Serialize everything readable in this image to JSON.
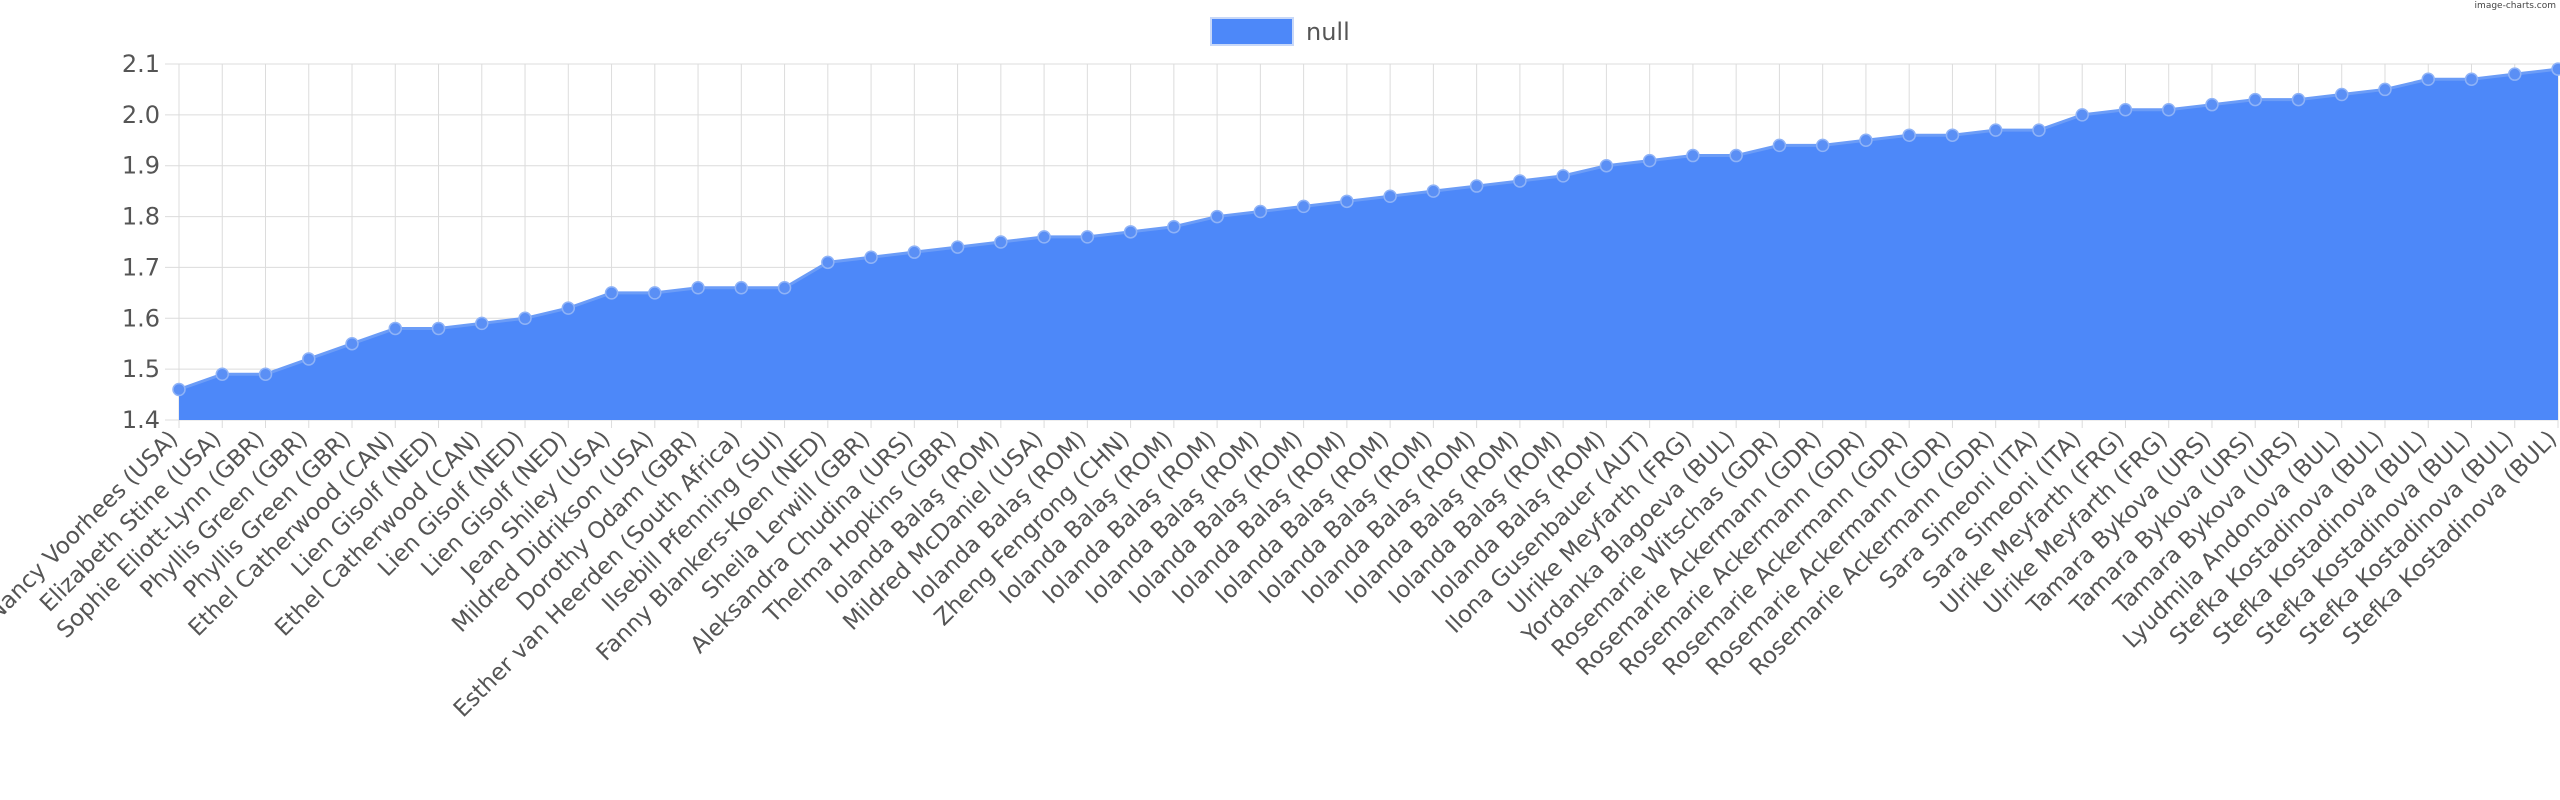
{
  "watermark": "image-charts.com",
  "chart_data": {
    "type": "area",
    "legend": {
      "position": "top",
      "entries": [
        "null"
      ]
    },
    "series": [
      {
        "name": "null",
        "color": "#4d88f9",
        "values": [
          1.46,
          1.49,
          1.49,
          1.52,
          1.55,
          1.58,
          1.58,
          1.59,
          1.6,
          1.62,
          1.65,
          1.65,
          1.66,
          1.66,
          1.66,
          1.71,
          1.72,
          1.73,
          1.74,
          1.75,
          1.76,
          1.76,
          1.77,
          1.78,
          1.8,
          1.81,
          1.82,
          1.83,
          1.84,
          1.85,
          1.86,
          1.87,
          1.88,
          1.9,
          1.91,
          1.92,
          1.92,
          1.94,
          1.94,
          1.95,
          1.96,
          1.96,
          1.97,
          1.97,
          2.0,
          2.01,
          2.01,
          2.02,
          2.03,
          2.03,
          2.04,
          2.05,
          2.07,
          2.07,
          2.08,
          2.09
        ]
      }
    ],
    "categories": [
      "Nancy Voorhees (USA)",
      "Elizabeth Stine (USA)",
      "Sophie Eliott-Lynn (GBR)",
      "Phyllis Green (GBR)",
      "Phyllis Green (GBR)",
      "Ethel Catherwood (CAN)",
      "Lien Gisolf (NED)",
      "Ethel Catherwood (CAN)",
      "Lien Gisolf (NED)",
      "Lien Gisolf (NED)",
      "Jean Shiley (USA)",
      "Mildred Didrikson (USA)",
      "Dorothy Odam (GBR)",
      "Esther van Heerden (South Africa)",
      "Ilsebill Pfenning (SUI)",
      "Fanny Blankers-Koen (NED)",
      "Sheila Lerwill (GBR)",
      "Aleksandra Chudina (URS)",
      "Thelma Hopkins (GBR)",
      "Iolanda Balaş (ROM)",
      "Mildred McDaniel (USA)",
      "Iolanda Balaş (ROM)",
      "Zheng Fengrong (CHN)",
      "Iolanda Balaş (ROM)",
      "Iolanda Balaş (ROM)",
      "Iolanda Balaş (ROM)",
      "Iolanda Balaş (ROM)",
      "Iolanda Balaş (ROM)",
      "Iolanda Balaş (ROM)",
      "Iolanda Balaş (ROM)",
      "Iolanda Balaş (ROM)",
      "Iolanda Balaş (ROM)",
      "Iolanda Balaş (ROM)",
      "Iolanda Balaş (ROM)",
      "Ilona Gusenbauer (AUT)",
      "Ulrike Meyfarth (FRG)",
      "Yordanka Blagoeva (BUL)",
      "Rosemarie Witschas (GDR)",
      "Rosemarie Ackermann (GDR)",
      "Rosemarie Ackermann (GDR)",
      "Rosemarie Ackermann (GDR)",
      "Rosemarie Ackermann (GDR)",
      "Rosemarie Ackermann (GDR)",
      "Sara Simeoni (ITA)",
      "Sara Simeoni (ITA)",
      "Ulrike Meyfarth (FRG)",
      "Ulrike Meyfarth (FRG)",
      "Tamara Bykova (URS)",
      "Tamara Bykova (URS)",
      "Tamara Bykova (URS)",
      "Lyudmila Andonova (BUL)",
      "Stefka Kostadinova (BUL)",
      "Stefka Kostadinova (BUL)",
      "Stefka Kostadinova (BUL)",
      "Stefka Kostadinova (BUL)",
      "Stefka Kostadinova (BUL)"
    ],
    "ylim": [
      1.4,
      2.1
    ],
    "yticks": [
      "1.4",
      "1.5",
      "1.6",
      "1.7",
      "1.8",
      "1.9",
      "2.0",
      "2.1"
    ],
    "grid": true
  }
}
